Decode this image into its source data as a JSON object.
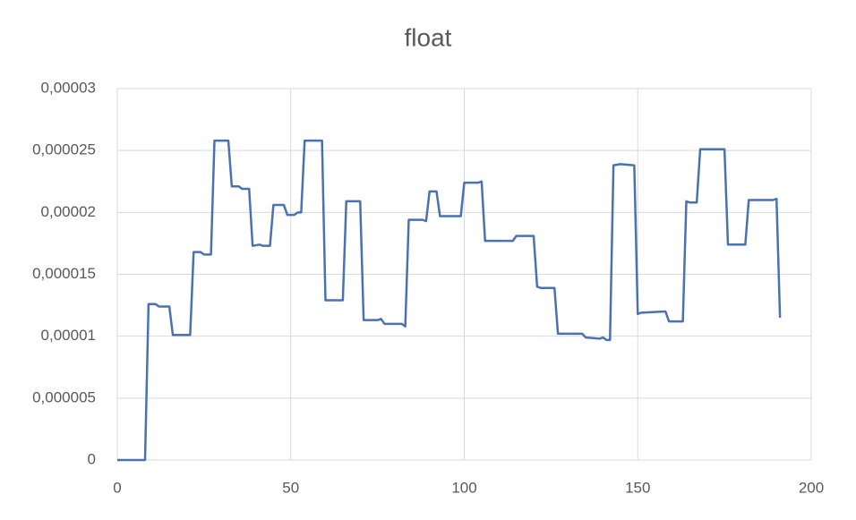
{
  "chart_data": {
    "type": "line",
    "title": "float",
    "x": [
      0,
      8,
      9,
      11,
      12,
      15,
      16,
      21,
      22,
      24,
      25,
      27,
      28,
      32,
      33,
      35,
      36,
      38,
      39,
      41,
      42,
      44,
      45,
      48,
      49,
      51,
      52,
      53,
      54,
      59,
      60,
      65,
      66,
      70,
      71,
      75,
      76,
      77,
      82,
      83,
      84,
      88,
      89,
      90,
      92,
      93,
      99,
      100,
      104,
      105,
      106,
      114,
      115,
      120,
      121,
      122,
      126,
      127,
      134,
      135,
      139,
      140,
      141,
      142,
      143,
      145,
      149,
      150,
      151,
      158,
      159,
      163,
      164,
      165,
      167,
      168,
      175,
      176,
      181,
      182,
      189,
      190,
      191
    ],
    "series": [
      {
        "color": "#4a72b0",
        "values": [
          0,
          0,
          1.26e-05,
          1.26e-05,
          1.24e-05,
          1.24e-05,
          1.01e-05,
          1.01e-05,
          1.68e-05,
          1.68e-05,
          1.66e-05,
          1.66e-05,
          2.58e-05,
          2.58e-05,
          2.21e-05,
          2.21e-05,
          2.19e-05,
          2.19e-05,
          1.73e-05,
          1.74e-05,
          1.73e-05,
          1.73e-05,
          2.06e-05,
          2.06e-05,
          1.98e-05,
          1.98e-05,
          2e-05,
          2e-05,
          2.58e-05,
          2.58e-05,
          1.29e-05,
          1.29e-05,
          2.09e-05,
          2.09e-05,
          1.13e-05,
          1.13e-05,
          1.14e-05,
          1.1e-05,
          1.1e-05,
          1.08e-05,
          1.94e-05,
          1.94e-05,
          1.93e-05,
          2.17e-05,
          2.17e-05,
          1.97e-05,
          1.97e-05,
          2.24e-05,
          2.24e-05,
          2.25e-05,
          1.77e-05,
          1.77e-05,
          1.81e-05,
          1.81e-05,
          1.4e-05,
          1.39e-05,
          1.39e-05,
          1.02e-05,
          1.02e-05,
          9.9e-06,
          9.8e-06,
          9.9e-06,
          9.7e-06,
          9.7e-06,
          2.38e-05,
          2.39e-05,
          2.38e-05,
          1.18e-05,
          1.19e-05,
          1.2e-05,
          1.12e-05,
          1.12e-05,
          2.09e-05,
          2.08e-05,
          2.08e-05,
          2.51e-05,
          2.51e-05,
          1.74e-05,
          1.74e-05,
          2.1e-05,
          2.1e-05,
          2.11e-05,
          1.15e-05
        ]
      }
    ],
    "xlim": [
      0,
      200
    ],
    "xticks": [
      0,
      50,
      100,
      150,
      200
    ],
    "ylim": [
      0,
      3e-05
    ],
    "yticks": [
      0,
      {
        "value": 5e-06,
        "label": "0,000005"
      },
      {
        "value": 1e-05,
        "label": "0,00001"
      },
      {
        "value": 1.5e-05,
        "label": "0,000015"
      },
      {
        "value": 2e-05,
        "label": "0,00002"
      },
      {
        "value": 2.5e-05,
        "label": "0,000025"
      },
      {
        "value": 3e-05,
        "label": "0,00003"
      }
    ],
    "grid": true
  }
}
